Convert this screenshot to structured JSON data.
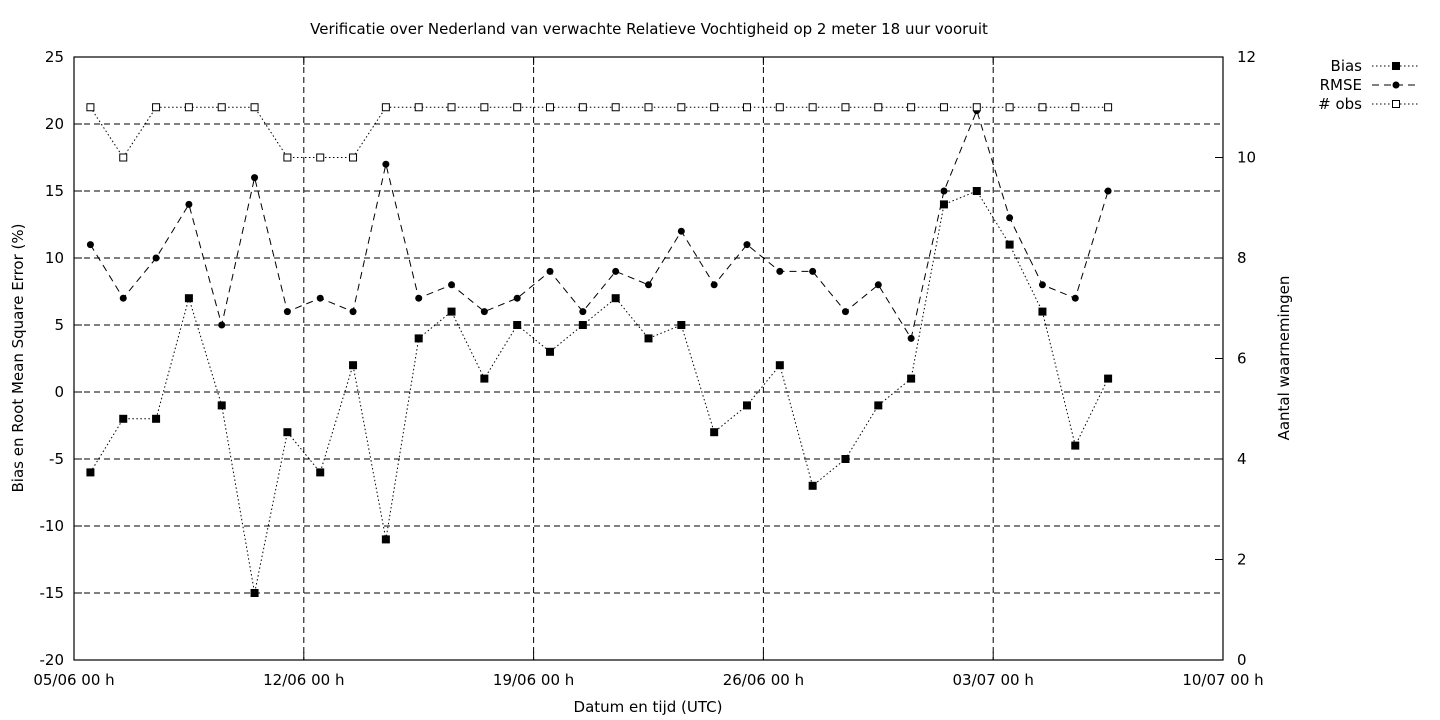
{
  "chart_data": {
    "type": "line",
    "title": "Verificatie over Nederland van verwachte Relatieve Vochtigheid op 2 meter 18 uur vooruit",
    "xlabel": "Datum en tijd (UTC)",
    "ylabel": "Bias en Root Mean Square Error (%)",
    "y2label": "Aantal waarnemingen",
    "x_tick_labels": [
      "05/06 00 h",
      "12/06 00 h",
      "19/06 00 h",
      "26/06 00 h",
      "03/07 00 h",
      "10/07 00 h"
    ],
    "x_tick_dates": [
      "2023-06-05",
      "2023-06-12",
      "2023-06-19",
      "2023-06-26",
      "2023-07-03",
      "2023-07-10"
    ],
    "xlim": [
      "2023-06-05",
      "2023-07-10"
    ],
    "ylim": [
      -20,
      25
    ],
    "yticks": [
      -20,
      -15,
      -10,
      -5,
      0,
      5,
      10,
      15,
      20,
      25
    ],
    "y2lim": [
      0,
      12
    ],
    "y2ticks": [
      0,
      2,
      4,
      6,
      8,
      10,
      12
    ],
    "grid": true,
    "legend_position": "top-right-outside",
    "x": [
      "2023-06-05 12:00",
      "2023-06-06 12:00",
      "2023-06-07 12:00",
      "2023-06-08 12:00",
      "2023-06-09 12:00",
      "2023-06-10 12:00",
      "2023-06-11 12:00",
      "2023-06-12 12:00",
      "2023-06-13 12:00",
      "2023-06-14 12:00",
      "2023-06-15 12:00",
      "2023-06-16 12:00",
      "2023-06-17 12:00",
      "2023-06-18 12:00",
      "2023-06-19 12:00",
      "2023-06-20 12:00",
      "2023-06-21 12:00",
      "2023-06-22 12:00",
      "2023-06-23 12:00",
      "2023-06-24 12:00",
      "2023-06-25 12:00",
      "2023-06-26 12:00",
      "2023-06-27 12:00",
      "2023-06-28 12:00",
      "2023-06-29 12:00",
      "2023-06-30 12:00",
      "2023-07-01 12:00",
      "2023-07-02 12:00",
      "2023-07-03 12:00",
      "2023-07-04 12:00",
      "2023-07-05 12:00",
      "2023-07-06 12:00"
    ],
    "series": [
      {
        "name": "Bias",
        "axis": "left",
        "marker": "filled-square",
        "line_style": "dotted",
        "values": [
          -6,
          -2,
          -2,
          7,
          -1,
          -15,
          -3,
          -6,
          2,
          -11,
          4,
          6,
          1,
          5,
          3,
          5,
          7,
          4,
          5,
          -3,
          -1,
          2,
          -7,
          -5,
          -1,
          1,
          14,
          15,
          11,
          6,
          -4,
          1
        ]
      },
      {
        "name": "RMSE",
        "axis": "left",
        "marker": "filled-circle",
        "line_style": "dashed",
        "values": [
          11,
          7,
          10,
          14,
          5,
          16,
          6,
          7,
          6,
          17,
          7,
          8,
          6,
          7,
          9,
          6,
          9,
          8,
          12,
          8,
          11,
          9,
          9,
          6,
          8,
          4,
          15,
          21,
          13,
          8,
          7,
          15
        ]
      },
      {
        "name": "# obs",
        "axis": "right",
        "marker": "open-square",
        "line_style": "dotted",
        "values": [
          11,
          10,
          11,
          11,
          11,
          11,
          10,
          10,
          10,
          11,
          11,
          11,
          11,
          11,
          11,
          11,
          11,
          11,
          11,
          11,
          11,
          11,
          11,
          11,
          11,
          11,
          11,
          11,
          11,
          11,
          11,
          11
        ]
      }
    ]
  }
}
